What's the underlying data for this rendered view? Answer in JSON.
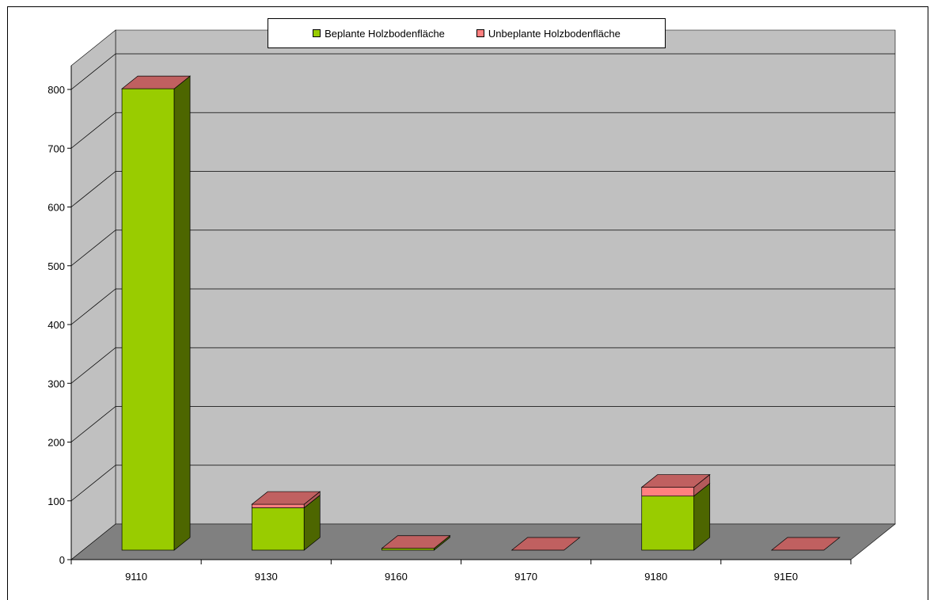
{
  "chart_data": {
    "type": "bar",
    "stacked": true,
    "three_d": true,
    "categories": [
      "9110",
      "9130",
      "9160",
      "9170",
      "9180",
      "91E0"
    ],
    "series": [
      {
        "name": "Beplante Holzbodenfläche",
        "values": [
          785,
          72,
          3,
          0,
          92,
          0
        ]
      },
      {
        "name": "Unbeplante Holzbodenfläche",
        "values": [
          0,
          6,
          0,
          0,
          15,
          0
        ]
      }
    ],
    "ylim": [
      0,
      800
    ],
    "yticks": [
      "0",
      "100",
      "200",
      "300",
      "400",
      "500",
      "600",
      "700",
      "800"
    ],
    "grid": true,
    "legend_position": "top-center",
    "colors": {
      "beplante": "#99CC00",
      "beplante_side": "#4D6600",
      "unbeplante": "#FF8080",
      "top_face": "#C06060",
      "wall": "#C0C0C0",
      "floor": "#808080"
    }
  }
}
